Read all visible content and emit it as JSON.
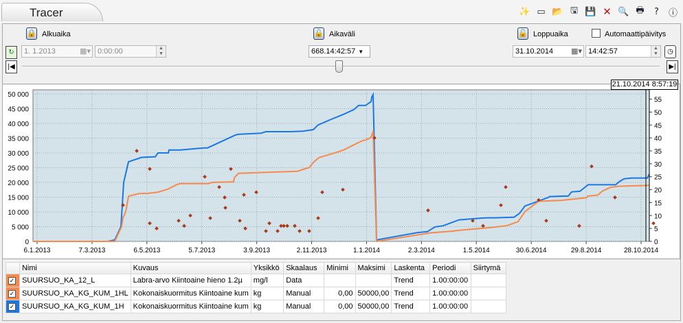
{
  "window": {
    "title": "Tracer"
  },
  "toolbar": {
    "icons": [
      "wand-icon",
      "new-icon",
      "open-icon",
      "save-as-icon",
      "save-icon",
      "delete-icon",
      "zoom-icon",
      "print-icon",
      "help-icon",
      "info-icon"
    ],
    "glyphs": [
      "✨",
      "▭",
      "📂",
      "🖫",
      "💾",
      "✕",
      "🔍",
      "🖶",
      "?",
      "ⓘ"
    ]
  },
  "controls": {
    "start_label": "Alkuaika",
    "start_date": "1. 1.2013",
    "start_time": "0:00:00",
    "interval_label": "Aikaväli",
    "interval_value": "668.14:42:57",
    "end_label": "Loppuaika",
    "end_date": "31.10.2014",
    "end_time": "14:42:57",
    "auto_update_label": "Automaattipäivitys"
  },
  "cursor_time": "21.10.2014 8:57:19",
  "colors": {
    "series_blue": "#1a78e0",
    "series_orange": "#f58a4c",
    "points": "#a83a1a",
    "plot_bg": "#d4e2ea"
  },
  "chart_data": {
    "type": "line",
    "x_tick_labels": [
      "6.1.2013",
      "7.3.2013",
      "6.5.2013",
      "5.7.2013",
      "3.9.2013",
      "2.11.2013",
      "1.1.2014",
      "2.3.2014",
      "1.5.2014",
      "30.6.2014",
      "29.8.2014",
      "28.10.2014"
    ],
    "y_left": {
      "min": 0,
      "max": 50000,
      "ticks": [
        "0",
        "5 000",
        "10 000",
        "15 000",
        "20 000",
        "25 000",
        "30 000",
        "35 000",
        "40 000",
        "45 000",
        "50 000"
      ]
    },
    "y_right": {
      "min": 0,
      "max": 57,
      "ticks": [
        "0",
        "5",
        "10",
        "15",
        "20",
        "25",
        "30",
        "35",
        "40",
        "45",
        "50",
        "55"
      ]
    },
    "series": [
      {
        "name": "SUURSUO_KA_KG_KUM_1H",
        "axis": "left",
        "x": [
          0,
          109,
          119,
          128,
          132,
          139,
          158,
          178,
          182,
          197,
          198,
          214,
          248,
          254,
          294,
          298,
          332,
          339,
          375,
          393,
          408,
          415,
          434,
          452,
          467,
          474,
          484,
          492,
          493,
          495,
          500,
          560,
          574,
          585,
          597,
          620,
          653,
          661,
          672,
          700,
          708,
          716,
          750,
          752,
          779,
          784,
          796,
          808,
          848,
          853,
          860,
          871,
          894,
          897
        ],
        "y": [
          0,
          0,
          500,
          5000,
          20000,
          27000,
          28500,
          28700,
          30000,
          30000,
          31000,
          31000,
          31700,
          31700,
          36000,
          36300,
          36700,
          37200,
          37200,
          37400,
          37900,
          39500,
          41400,
          43100,
          44700,
          46100,
          46100,
          47400,
          48900,
          49800,
          500,
          3000,
          3300,
          4900,
          5300,
          7300,
          7900,
          8000,
          8000,
          8200,
          9500,
          12000,
          14900,
          15200,
          15400,
          16800,
          17000,
          19200,
          19200,
          20200,
          21200,
          21500,
          21500,
          22800
        ]
      },
      {
        "name": "SUURSUO_KA_KG_KUM_1HL",
        "axis": "left",
        "x": [
          0,
          119,
          125,
          129,
          131,
          135,
          139,
          154,
          168,
          182,
          186,
          196,
          209,
          214,
          256,
          260,
          292,
          293,
          299,
          375,
          385,
          398,
          402,
          408,
          416,
          426,
          436,
          446,
          452,
          464,
          471,
          479,
          484,
          491,
          493,
          495,
          500,
          579,
          602,
          612,
          621,
          671,
          688,
          692,
          706,
          716,
          736,
          768,
          805,
          808,
          822,
          829,
          840,
          852,
          897
        ],
        "y": [
          0,
          0,
          3000,
          5000,
          8000,
          10000,
          15300,
          16200,
          16300,
          16700,
          17000,
          17700,
          19200,
          19600,
          19600,
          20000,
          20200,
          21600,
          23100,
          23700,
          23800,
          24800,
          25000,
          26800,
          28400,
          29100,
          29800,
          30500,
          31000,
          32400,
          33200,
          34100,
          34400,
          35100,
          35800,
          37500,
          0,
          2900,
          3300,
          3500,
          3800,
          4800,
          5300,
          5500,
          6700,
          10100,
          13600,
          13900,
          14800,
          15400,
          15700,
          17100,
          18300,
          18700,
          19000
        ]
      },
      {
        "name": "SUURSUO_KA_12_L",
        "axis": "right",
        "type": "scatter",
        "x": [
          131,
          151,
          170,
          170,
          180,
          212,
          220,
          229,
          250,
          258,
          271,
          279,
          280,
          288,
          301,
          307,
          309,
          325,
          339,
          344,
          356,
          361,
          365,
          370,
          381,
          388,
          402,
          415,
          421,
          451,
          497,
          575,
          640,
          655,
          681,
          688,
          736,
          747,
          795,
          813,
          847,
          903
        ],
        "y": [
          14,
          35,
          28,
          7,
          5,
          8,
          6,
          10,
          25,
          9,
          21,
          17,
          13,
          28,
          8,
          18,
          5,
          19,
          4,
          7,
          4,
          6,
          6,
          6,
          6,
          4,
          4,
          9,
          19,
          20,
          40,
          12,
          8,
          6,
          14,
          21,
          16,
          8,
          6,
          29,
          17,
          7
        ]
      }
    ]
  },
  "table": {
    "headers": [
      "",
      "Nimi",
      "Kuvaus",
      "Yksikkö",
      "Skaalaus",
      "Minimi",
      "Maksimi",
      "Laskenta",
      "Periodi",
      "Siirtymä"
    ],
    "rows": [
      {
        "color": "#f58a4c",
        "checked": "✓",
        "name": "SUURSUO_KA_12_L",
        "desc": "Labra-arvo Kiintoaine hieno 1.2µ",
        "unit": "mg/l",
        "scale": "Data",
        "min": "",
        "max": "",
        "calc": "Trend",
        "period": "1.00:00:00",
        "offset": ""
      },
      {
        "color": "#f58a4c",
        "checked": "✓",
        "name": "SUURSUO_KA_KG_KUM_1HL",
        "desc": "Kokonaiskuormitus Kiintoaine kum",
        "unit": "kg",
        "scale": "Manual",
        "min": "0,00",
        "max": "50000,00",
        "calc": "Trend",
        "period": "1.00:00:00",
        "offset": ""
      },
      {
        "color": "#1a78e0",
        "checked": "✓",
        "name": "SUURSUO_KA_KG_KUM_1H",
        "desc": "Kokonaiskuormitus Kiintoaine kum",
        "unit": "kg",
        "scale": "Manual",
        "min": "0,00",
        "max": "50000,00",
        "calc": "Trend",
        "period": "1.00:00:00",
        "offset": ""
      }
    ]
  }
}
